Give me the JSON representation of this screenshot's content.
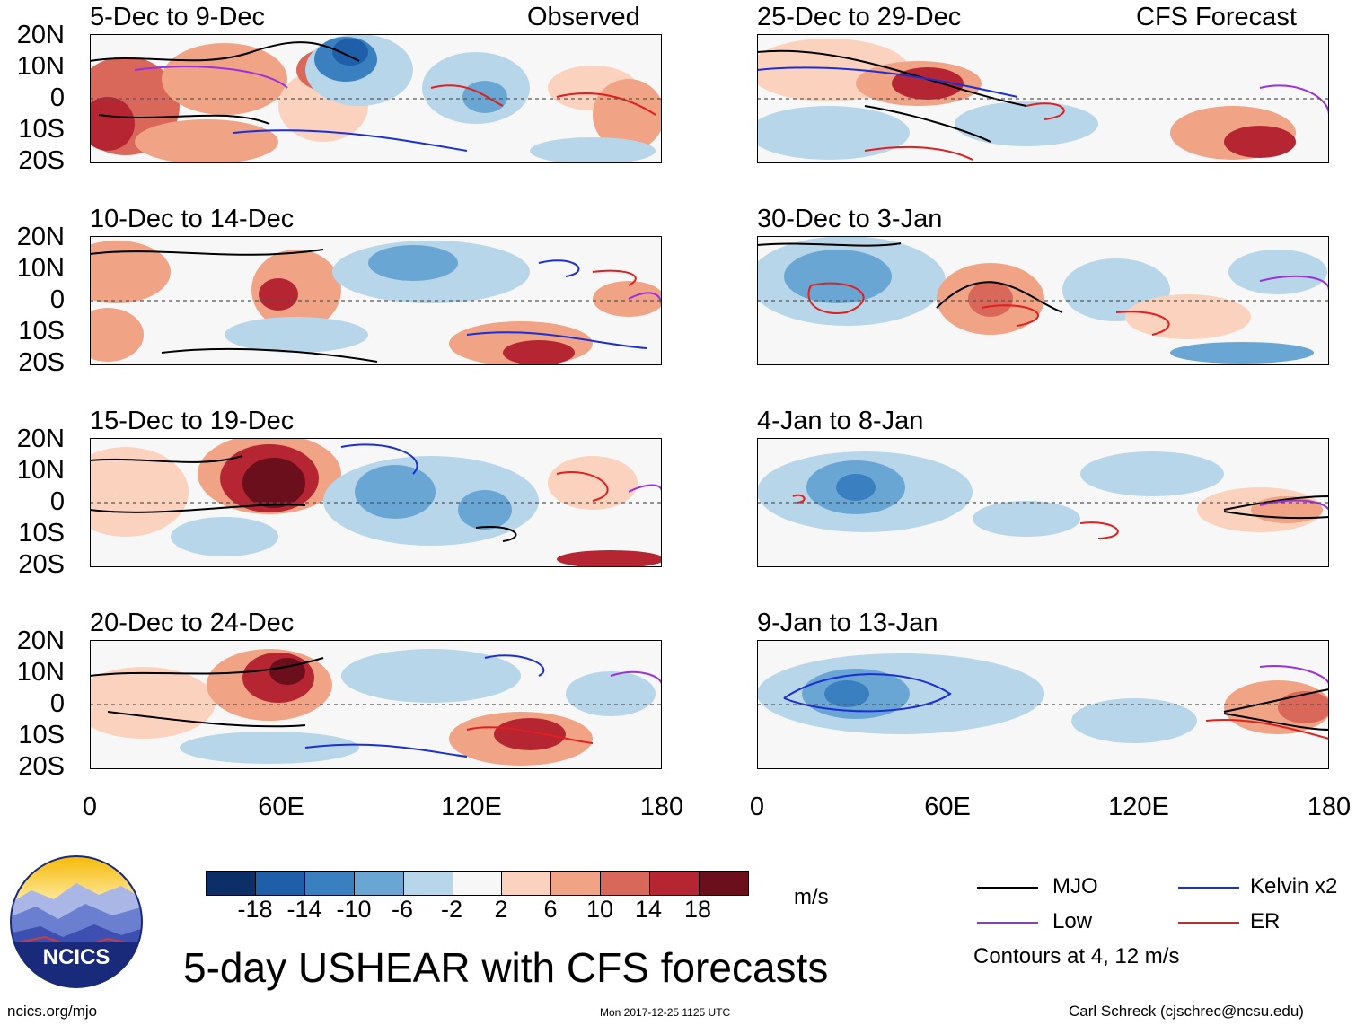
{
  "figure": {
    "title": "5-day USHEAR with CFS forecasts",
    "units": "m/s",
    "contour_note": "Contours at 4, 12 m/s",
    "footer_left": "ncics.org/mjo",
    "footer_center": "Mon 2017-12-25 1125 UTC",
    "footer_right": "Carl Schreck (cjschrec@ncsu.edu)",
    "logo_text": "NCICS"
  },
  "labels": {
    "observed": "Observed",
    "forecast": "CFS Forecast",
    "lat_ticks": [
      "20N",
      "10N",
      "0",
      "10S",
      "20S"
    ],
    "lon_ticks": [
      "0",
      "60E",
      "120E",
      "180"
    ]
  },
  "panels_observed": [
    {
      "period": "5-Dec to 9-Dec"
    },
    {
      "period": "10-Dec to 14-Dec"
    },
    {
      "period": "15-Dec to 19-Dec"
    },
    {
      "period": "20-Dec to 24-Dec"
    }
  ],
  "panels_forecast": [
    {
      "period": "25-Dec to 29-Dec"
    },
    {
      "period": "30-Dec to 3-Jan"
    },
    {
      "period": "4-Jan to 8-Jan"
    },
    {
      "period": "9-Jan to 13-Jan"
    }
  ],
  "colorbar": {
    "colors": [
      "#0b2f66",
      "#1f5ea8",
      "#3a7fc0",
      "#6aa6d3",
      "#b8d6ea",
      "#f7f7f7",
      "#fbd2bd",
      "#f0a385",
      "#d9685a",
      "#b52532",
      "#6b0f1c"
    ],
    "tick_labels": [
      "-18",
      "-14",
      "-10",
      "-6",
      "-2",
      "2",
      "6",
      "10",
      "14",
      "18"
    ]
  },
  "legend": [
    {
      "label": "MJO",
      "color": "#000000"
    },
    {
      "label": "Kelvin x2",
      "color": "#1a2fd6"
    },
    {
      "label": "Low",
      "color": "#9b30e0"
    },
    {
      "label": "ER",
      "color": "#e01f1f"
    }
  ]
}
